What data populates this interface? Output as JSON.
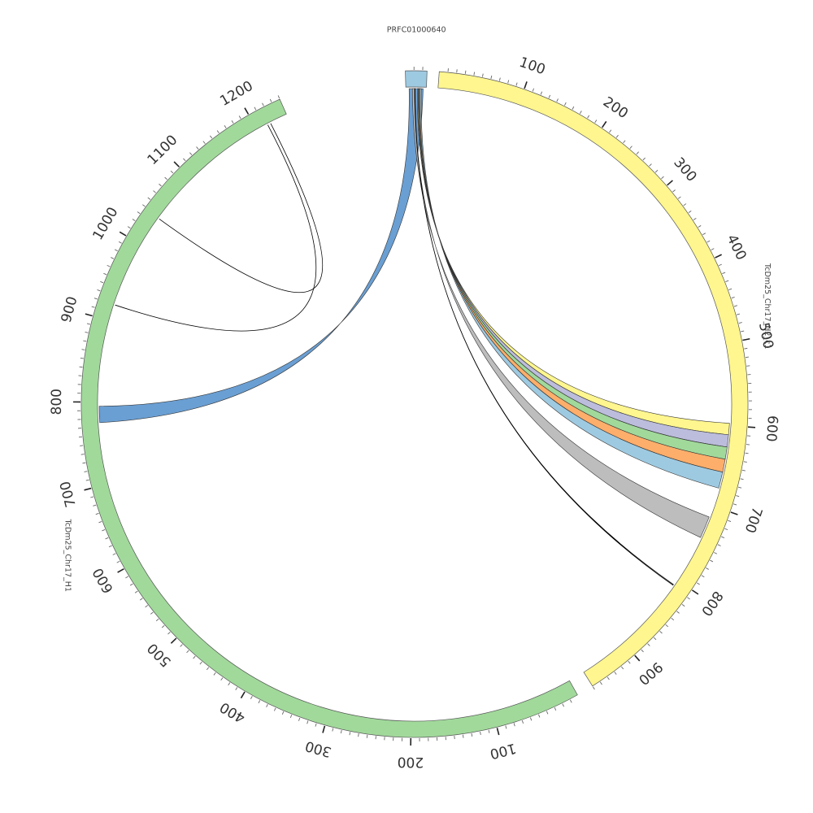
{
  "segments": [
    {
      "id": "prfc",
      "label": "PRFC01000640",
      "color": "#9ecae1",
      "length": 25,
      "ticks": []
    },
    {
      "id": "h2",
      "label": "TcDm25_Chr17_H2_c1",
      "color": "#fff68f",
      "length": 960,
      "ticks": [
        "100",
        "200",
        "300",
        "400",
        "500",
        "600",
        "700",
        "800",
        "900"
      ]
    },
    {
      "id": "h1",
      "label": "TcDm25_Chr17_H1",
      "color": "#a1d99b",
      "length": 1240,
      "ticks": [
        "100",
        "200",
        "300",
        "400",
        "500",
        "600",
        "700",
        "800",
        "900",
        "1000",
        "1100",
        "1200"
      ]
    }
  ],
  "links": [
    {
      "from": "prfc",
      "to": "h1",
      "color": "#6a9fd3",
      "target_start": 775,
      "target_end": 795
    },
    {
      "from": "prfc",
      "to": "h2",
      "color": "#fff68f",
      "target_start": 597,
      "target_end": 611
    },
    {
      "from": "prfc",
      "to": "h2",
      "color": "#bcbddc",
      "target_start": 611,
      "target_end": 626
    },
    {
      "from": "prfc",
      "to": "h2",
      "color": "#a1d99b",
      "target_start": 626,
      "target_end": 641
    },
    {
      "from": "prfc",
      "to": "h2",
      "color": "#fdae6b",
      "target_start": 641,
      "target_end": 657
    },
    {
      "from": "prfc",
      "to": "h2",
      "color": "#9ecae1",
      "target_start": 657,
      "target_end": 677
    },
    {
      "from": "prfc",
      "to": "h2",
      "color": "#bdbdbd",
      "target_start": 714,
      "target_end": 741
    },
    {
      "from": "prfc",
      "to": "h2",
      "color": "#1f3a93",
      "target_start": 807,
      "target_end": 808
    },
    {
      "from": "h1",
      "to": "h1",
      "color": "#556b2f",
      "source_position": 1038,
      "target_position": 1218
    },
    {
      "from": "h1",
      "to": "h1",
      "color": "#000000",
      "source_position": 920,
      "target_position": 1214
    }
  ]
}
